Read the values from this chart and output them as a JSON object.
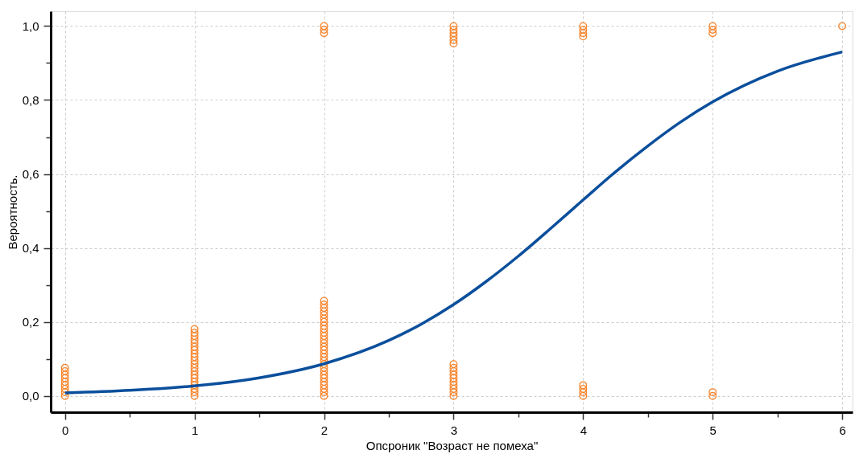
{
  "chart_data": {
    "type": "scatter",
    "xlabel": "Опсроник \"Возраст не помеха\"",
    "ylabel": "Вероятность.",
    "xlim": [
      -0.11,
      6.08
    ],
    "ylim": [
      -0.044,
      1.04
    ],
    "xticks": [
      0,
      {
        "value": 0.5,
        "label": null
      },
      1,
      {
        "value": 1.5,
        "label": null
      },
      2,
      {
        "value": 2.5,
        "label": null
      },
      3,
      {
        "value": 3.5,
        "label": null
      },
      4,
      {
        "value": 4.5,
        "label": null
      },
      5,
      {
        "value": 5.5,
        "label": null
      },
      6
    ],
    "yticks": [
      {
        "value": 0,
        "label": "0,0"
      },
      {
        "value": 0.1,
        "label": null
      },
      {
        "value": 0.2,
        "label": "0,2"
      },
      {
        "value": 0.3,
        "label": null
      },
      {
        "value": 0.4,
        "label": "0,4"
      },
      {
        "value": 0.5,
        "label": null
      },
      {
        "value": 0.6,
        "label": "0,6"
      },
      {
        "value": 0.7,
        "label": null
      },
      {
        "value": 0.8,
        "label": "0,8"
      },
      {
        "value": 0.9,
        "label": null
      },
      {
        "value": 1,
        "label": "1,0"
      }
    ],
    "grid": true,
    "series": [
      {
        "color": "#f7862e",
        "marker": "circle",
        "x": [
          0,
          0,
          0,
          0,
          0,
          0,
          0,
          0,
          0,
          1,
          1,
          1,
          1,
          1,
          1,
          1,
          1,
          1,
          1,
          1,
          1,
          1,
          1,
          1,
          1,
          1,
          1,
          1,
          1,
          2,
          2,
          2,
          2,
          2,
          2,
          2,
          2,
          2,
          2,
          2,
          2,
          2,
          2,
          2,
          2,
          2,
          2,
          2,
          2,
          2,
          2,
          2,
          2,
          2,
          2,
          2,
          2,
          3,
          3,
          3,
          3,
          3,
          3,
          3,
          3,
          3,
          3,
          4,
          4,
          4,
          4,
          5,
          5,
          2,
          2,
          2,
          3,
          3,
          3,
          3,
          3,
          3,
          4,
          4,
          4,
          4,
          5,
          5,
          5,
          6
        ],
        "values": [
          0,
          0.01,
          0.019,
          0.029,
          0.038,
          0.048,
          0.057,
          0.067,
          0.076,
          0,
          0.01,
          0.019,
          0.029,
          0.038,
          0.048,
          0.057,
          0.067,
          0.076,
          0.086,
          0.095,
          0.105,
          0.114,
          0.124,
          0.133,
          0.143,
          0.152,
          0.162,
          0.171,
          0.181,
          0,
          0.01,
          0.019,
          0.029,
          0.038,
          0.048,
          0.057,
          0.067,
          0.076,
          0.086,
          0.095,
          0.105,
          0.114,
          0.124,
          0.133,
          0.143,
          0.152,
          0.162,
          0.171,
          0.181,
          0.19,
          0.2,
          0.209,
          0.219,
          0.228,
          0.238,
          0.247,
          0.257,
          0,
          0.01,
          0.019,
          0.029,
          0.038,
          0.048,
          0.057,
          0.067,
          0.076,
          0.086,
          0,
          0.01,
          0.019,
          0.029,
          0,
          0.01,
          1,
          0.99,
          0.981,
          1,
          0.99,
          0.981,
          0.972,
          0.962,
          0.953,
          1,
          0.99,
          0.981,
          0.972,
          1,
          0.99,
          0.981,
          1
        ]
      },
      {
        "type": "line",
        "color": "#0b4f9c",
        "line_style": "solid",
        "x": [
          0,
          0.5,
          1,
          1.5,
          2,
          2.5,
          2.75,
          3,
          3.25,
          3.5,
          3.75,
          4,
          4.25,
          4.5,
          4.75,
          5,
          5.5,
          6
        ],
        "values": [
          0.008,
          0.015,
          0.027,
          0.049,
          0.087,
          0.15,
          0.194,
          0.247,
          0.309,
          0.378,
          0.453,
          0.53,
          0.606,
          0.676,
          0.74,
          0.795,
          0.878,
          0.93
        ]
      }
    ]
  }
}
